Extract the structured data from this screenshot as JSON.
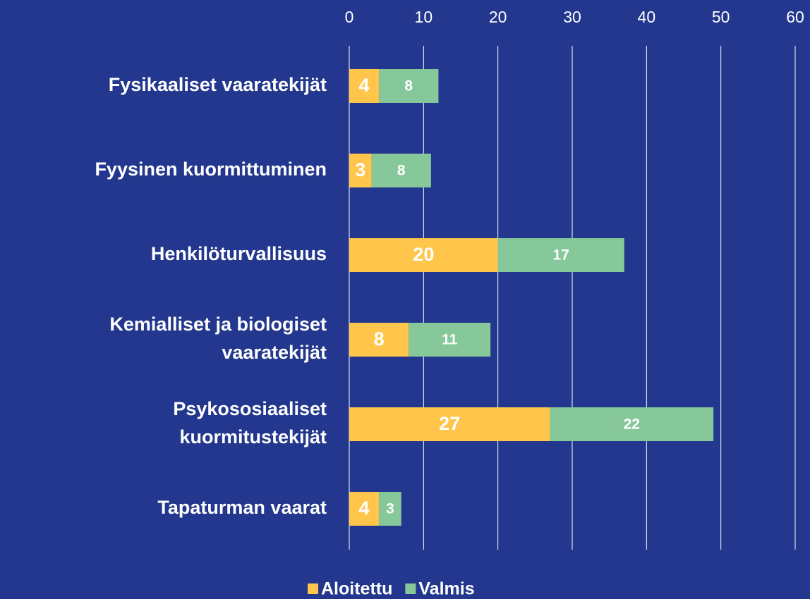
{
  "chart_data": {
    "type": "stacked-barh",
    "categories": [
      "Fysikaaliset vaaratekijät",
      "Fyysinen kuormittuminen",
      "Henkilöturvallisuus",
      "Kemialliset ja biologiset\nvaaratekijät",
      "Psykososiaaliset\nkuormitustekijät",
      "Tapaturman vaarat"
    ],
    "series": [
      {
        "name": "Aloitettu",
        "color": "#ffc64b",
        "values": [
          4,
          3,
          20,
          8,
          27,
          4
        ]
      },
      {
        "name": "Valmis",
        "color": "#86c899",
        "values": [
          8,
          8,
          17,
          11,
          22,
          3
        ]
      }
    ],
    "xlim": [
      0,
      60
    ],
    "xticks": [
      0,
      10,
      20,
      30,
      40,
      50,
      60
    ],
    "grid": true,
    "legend": "bottom"
  }
}
